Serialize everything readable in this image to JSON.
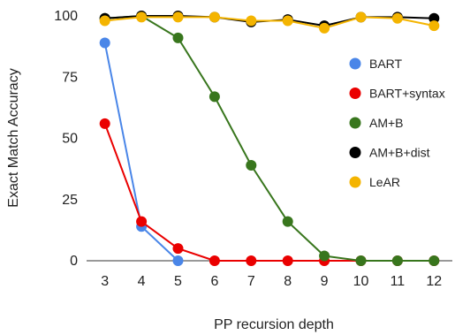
{
  "chart_data": {
    "type": "line",
    "xlabel": "PP recursion depth",
    "ylabel": "Exact Match Accuracy",
    "x": [
      3,
      4,
      5,
      6,
      7,
      8,
      9,
      10,
      11,
      12
    ],
    "y_ticks": [
      0,
      25,
      50,
      75,
      100
    ],
    "ylim": [
      0,
      100
    ],
    "grid": "horizontal baseline only",
    "legend_position": "right",
    "series": [
      {
        "name": "BART",
        "color": "#4a86e8",
        "values": [
          89,
          14,
          0,
          null,
          null,
          null,
          null,
          null,
          null,
          null
        ]
      },
      {
        "name": "BART+syntax",
        "color": "#ea0000",
        "values": [
          56,
          16,
          5,
          0,
          0,
          0,
          0,
          0,
          0,
          0
        ]
      },
      {
        "name": "AM+B",
        "color": "#38761d",
        "values": [
          99,
          100,
          91,
          67,
          39,
          16,
          2,
          0,
          0,
          0
        ]
      },
      {
        "name": "AM+B+dist",
        "color": "#000000",
        "values": [
          99,
          100,
          100,
          99.5,
          97.5,
          98.5,
          96,
          99.5,
          99.5,
          99
        ]
      },
      {
        "name": "LeAR",
        "color": "#f4b400",
        "values": [
          98,
          99.5,
          99.5,
          99.5,
          98,
          98,
          95,
          99.5,
          99,
          96
        ]
      }
    ]
  }
}
